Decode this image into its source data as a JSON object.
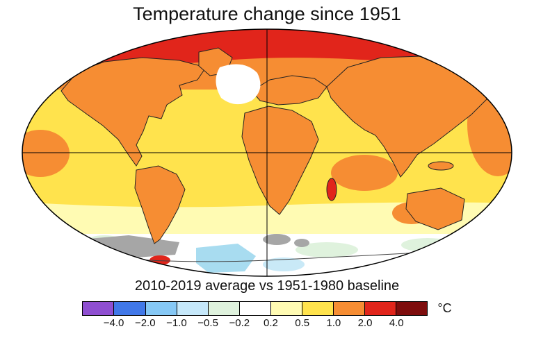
{
  "title": "Temperature change since 1951",
  "subtitle": "2010-2019 average vs 1951-1980 baseline",
  "legend": {
    "unit": "°C",
    "ticks": [
      "−4.0",
      "−2.0",
      "−1.0",
      "−0.5",
      "−0.2",
      "0.2",
      "0.5",
      "1.0",
      "2.0",
      "4.0"
    ],
    "colors": [
      "#8f4fd1",
      "#4178e8",
      "#86c8f5",
      "#c6e8fa",
      "#dff2dd",
      "#ffffff",
      "#fffbb3",
      "#ffe34d",
      "#f68d33",
      "#e1251b",
      "#7e0d0d"
    ]
  },
  "map": {
    "name": "global-temperature-anomaly-map",
    "projection": "elliptical-world-projection",
    "colors": {
      "base": "#ffe34d",
      "pale": "#fffbb3",
      "orange": "#f68d33",
      "red": "#e1251b",
      "white": "#ffffff",
      "gray": "#a6a6a6",
      "lightblue": "#a8dcf0",
      "palecyan": "#c9e9f7",
      "palegreen": "#dff2dd"
    }
  }
}
